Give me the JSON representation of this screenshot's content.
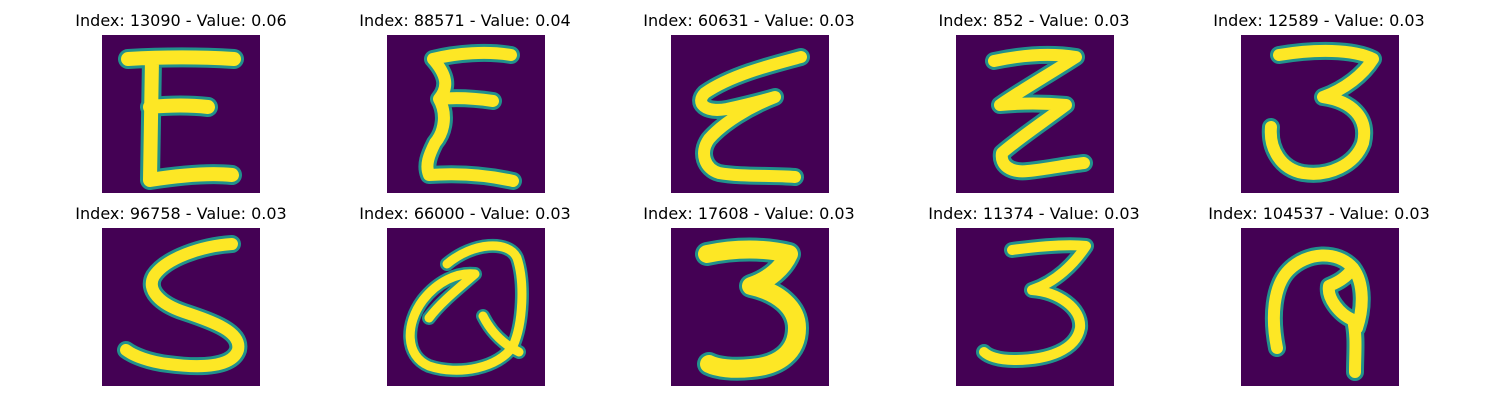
{
  "colors": {
    "background": "#440154",
    "stroke_core": "#fde725",
    "stroke_edge": "#21918c"
  },
  "panels": [
    {
      "title": "Index: 13090 - Value: 0.06",
      "glyph": "E-shape-icon"
    },
    {
      "title": "Index: 88571 - Value: 0.04",
      "glyph": "sigma-shape-icon"
    },
    {
      "title": "Index: 60631 - Value: 0.03",
      "glyph": "cursive-e-shape-icon"
    },
    {
      "title": "Index: 852 - Value: 0.03",
      "glyph": "zigzag-shape-icon"
    },
    {
      "title": "Index: 12589 - Value: 0.03",
      "glyph": "three-shape-icon"
    },
    {
      "title": "Index: 96758 - Value: 0.03",
      "glyph": "s-shape-icon"
    },
    {
      "title": "Index: 66000 - Value: 0.03",
      "glyph": "q-shape-icon"
    },
    {
      "title": "Index: 17608 - Value: 0.03",
      "glyph": "bold-three-shape-icon"
    },
    {
      "title": "Index: 11374 - Value: 0.03",
      "glyph": "thin-three-shape-icon"
    },
    {
      "title": "Index: 104537 - Value: 0.03",
      "glyph": "loop-shape-icon"
    }
  ]
}
